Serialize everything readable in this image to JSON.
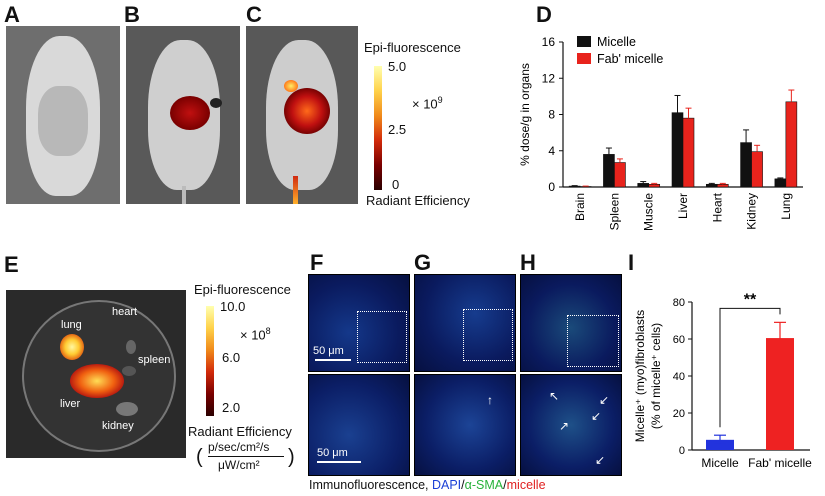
{
  "panels": {
    "a": "A",
    "b": "B",
    "c": "C",
    "d": "D",
    "e": "E",
    "f": "F",
    "g": "G",
    "h": "H",
    "i": "I"
  },
  "colorbar_c": {
    "title": "Epi-fluorescence",
    "max": "5.0",
    "mid": "2.5",
    "min": "0",
    "multiplier": "× 10",
    "multiplier_exp": "9",
    "label": "Radiant Efficiency"
  },
  "colorbar_e": {
    "title": "Epi-fluorescence",
    "max": "10.0",
    "mid": "6.0",
    "min": "2.0",
    "multiplier": "× 10",
    "multiplier_exp": "8",
    "label": "Radiant Efficiency",
    "unit_num": "p/sec/cm²/s",
    "unit_den": "μW/cm²"
  },
  "dish_labels": [
    "lung",
    "heart",
    "spleen",
    "liver",
    "kidney"
  ],
  "scale_label": "50 μm",
  "caption": {
    "prefix": "Immunofluorescence, ",
    "dapi": "DAPI",
    "slash1": "/",
    "sma": "α-SMA",
    "slash2": "/",
    "micelle": "micelle"
  },
  "colors": {
    "micelle": "#111111",
    "fab": "#e8231c",
    "blue_bar": "#2233dd",
    "red_bar": "#ee2222",
    "dapi": "#1a3fd6",
    "sma": "#27b23a",
    "micelle_txt": "#e02020"
  },
  "chart_data": [
    {
      "type": "bar",
      "panel": "D",
      "ylabel": "% dose/g in organs",
      "categories": [
        "Brain",
        "Spleen",
        "Muscle",
        "Liver",
        "Heart",
        "Kidney",
        "Lung"
      ],
      "ylim": [
        0,
        16
      ],
      "yticks": [
        "0",
        "4",
        "8",
        "12",
        "16"
      ],
      "legend_position": "top-left",
      "series": [
        {
          "name": "Micelle",
          "values": [
            0.1,
            3.6,
            0.4,
            8.2,
            0.3,
            4.9,
            0.9
          ],
          "errors": [
            0.05,
            0.7,
            0.2,
            1.9,
            0.1,
            1.4,
            0.1
          ]
        },
        {
          "name": "Fab' micelle",
          "values": [
            0.05,
            2.7,
            0.3,
            7.6,
            0.3,
            3.9,
            9.4
          ],
          "errors": [
            0.05,
            0.4,
            0.1,
            1.1,
            0.1,
            0.7,
            1.3
          ]
        }
      ]
    },
    {
      "type": "bar",
      "panel": "I",
      "ylabel_line1": "Micelle⁺ (myo)fibroblasts",
      "ylabel_line2": "(% of micelle⁺ cells)",
      "categories": [
        "Micelle",
        "Fab' micelle"
      ],
      "values": [
        5.5,
        60.5
      ],
      "errors": [
        2.5,
        8.5
      ],
      "ylim": [
        0,
        80
      ],
      "yticks": [
        "0",
        "20",
        "40",
        "60",
        "80"
      ],
      "significance": "**"
    }
  ]
}
